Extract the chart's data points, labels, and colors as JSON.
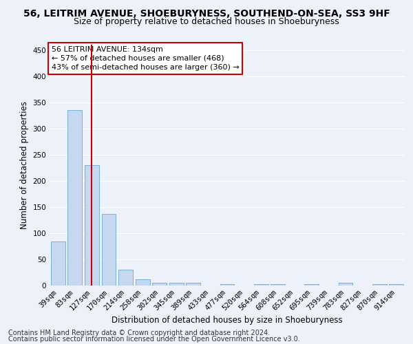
{
  "title": "56, LEITRIM AVENUE, SHOEBURYNESS, SOUTHEND-ON-SEA, SS3 9HF",
  "subtitle": "Size of property relative to detached houses in Shoeburyness",
  "xlabel": "Distribution of detached houses by size in Shoeburyness",
  "ylabel": "Number of detached properties",
  "categories": [
    "39sqm",
    "83sqm",
    "127sqm",
    "170sqm",
    "214sqm",
    "258sqm",
    "302sqm",
    "345sqm",
    "389sqm",
    "433sqm",
    "477sqm",
    "520sqm",
    "564sqm",
    "608sqm",
    "652sqm",
    "695sqm",
    "739sqm",
    "783sqm",
    "827sqm",
    "870sqm",
    "914sqm"
  ],
  "values": [
    84,
    335,
    230,
    137,
    30,
    12,
    5,
    5,
    5,
    0,
    3,
    0,
    3,
    2,
    0,
    3,
    0,
    5,
    0,
    2,
    3
  ],
  "bar_color": "#c5d8f0",
  "bar_edge_color": "#7aafd4",
  "vline_x_index": 2,
  "vline_color": "#cc0000",
  "annotation_text": "56 LEITRIM AVENUE: 134sqm\n← 57% of detached houses are smaller (468)\n43% of semi-detached houses are larger (360) →",
  "annotation_box_color": "#ffffff",
  "annotation_box_edge": "#cc0000",
  "ylim": [
    0,
    460
  ],
  "yticks": [
    0,
    50,
    100,
    150,
    200,
    250,
    300,
    350,
    400,
    450
  ],
  "footer1": "Contains HM Land Registry data © Crown copyright and database right 2024.",
  "footer2": "Contains public sector information licensed under the Open Government Licence v3.0.",
  "background_color": "#edf2fa",
  "grid_color": "#ffffff",
  "title_fontsize": 10,
  "subtitle_fontsize": 9,
  "axis_label_fontsize": 8.5,
  "tick_fontsize": 7.5,
  "annotation_fontsize": 8,
  "footer_fontsize": 7
}
